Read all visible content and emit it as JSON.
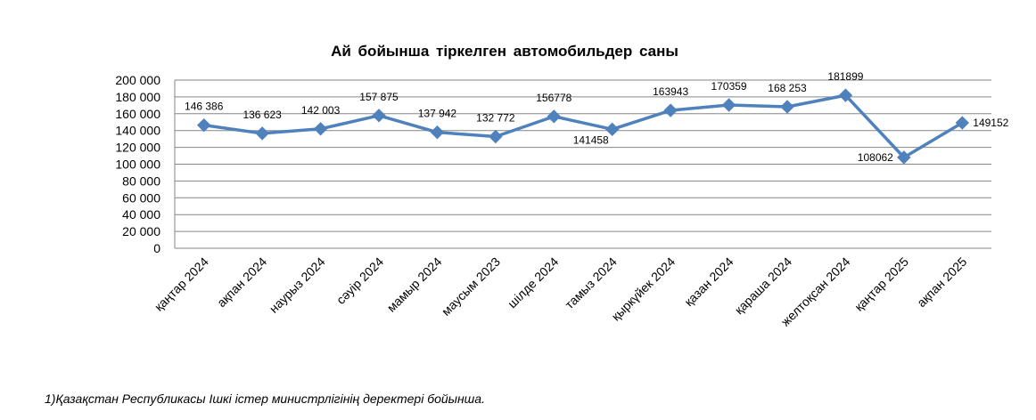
{
  "chart_data": {
    "type": "line",
    "title": "Ай бойынша тіркелген автомобильдер саны",
    "xlabel": "",
    "ylabel": "",
    "ylim": [
      0,
      200000
    ],
    "y_ticks": [
      "0",
      "20 000",
      "40 000",
      "60 000",
      "80 000",
      "100 000",
      "120 000",
      "140 000",
      "160 000",
      "180 000",
      "200 000"
    ],
    "grid": true,
    "legend": "none",
    "categories": [
      "қаңтар 2024",
      "ақпан 2024",
      "наурыз 2024",
      "сәуір 2024",
      "мамыр 2024",
      "маусым 2023",
      "шілде 2024",
      "тамыз 2024",
      "қыркүйек 2024",
      "қазан 2024",
      "қараша 2024",
      "желтоқсан 2024",
      "қаңтар 2025",
      "ақпан 2025"
    ],
    "series": [
      {
        "values": [
          146386,
          136623,
          142003,
          157875,
          137942,
          132772,
          156778,
          141458,
          163943,
          170359,
          168253,
          181899,
          108062,
          149152
        ],
        "data_labels": [
          "146 386",
          "136 623",
          "142 003",
          "157 875",
          "137 942",
          "132 772",
          "156778",
          "141458",
          "163943",
          "170359",
          "168 253",
          "181899",
          "108062",
          "149152"
        ],
        "label_positions": [
          "above",
          "above",
          "above",
          "above",
          "above",
          "above",
          "above",
          "below",
          "above",
          "above",
          "above",
          "above",
          "left",
          "right"
        ]
      }
    ],
    "colors": {
      "line": "#4F81BD",
      "marker": "#4F81BD",
      "grid": "#868686"
    }
  },
  "footnote": "1)Қазақстан Республикасы Ішкі істер министрлігінің деректері бойынша."
}
